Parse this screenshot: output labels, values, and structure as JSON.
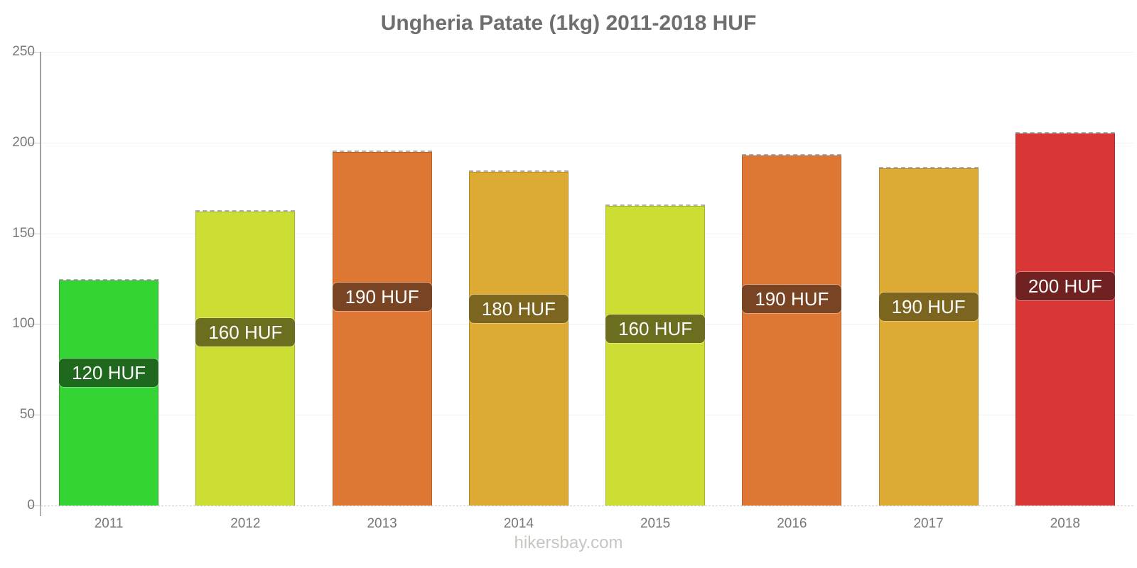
{
  "title": "Ungheria Patate (1kg) 2011-2018 HUF",
  "footer": "hikersbay.com",
  "chart_data": {
    "type": "bar",
    "title": "Ungheria Patate (1kg) 2011-2018 HUF",
    "xlabel": "",
    "ylabel": "",
    "categories": [
      "2011",
      "2012",
      "2013",
      "2014",
      "2015",
      "2016",
      "2017",
      "2018"
    ],
    "values": [
      124,
      162,
      195,
      184,
      165,
      193,
      186,
      205
    ],
    "value_labels": [
      "120 HUF",
      "160 HUF",
      "190 HUF",
      "180 HUF",
      "160 HUF",
      "190 HUF",
      "190 HUF",
      "200 HUF"
    ],
    "bar_colors": [
      "#33d433",
      "#ccdd33",
      "#dd7733",
      "#ddaa33",
      "#ccdd33",
      "#dd7733",
      "#ddaa33",
      "#d93636"
    ],
    "badge_colors": [
      "#1f691f",
      "#6b6d1f",
      "#784423",
      "#7b651f",
      "#6b6d1f",
      "#784423",
      "#7b651f",
      "#702222"
    ],
    "ylim": [
      0,
      250
    ],
    "yticks": [
      0,
      50,
      100,
      150,
      200,
      250
    ],
    "grid": true,
    "legend": "none"
  },
  "colors": {
    "title_text": "#6e6e6e",
    "axis_line": "#a0a0a0",
    "tick_mark": "#c4c4c4",
    "tick_label": "#787878",
    "gridline": "#f0f0f0",
    "badge_text": "#ffffff",
    "footer_text": "#c9c5c1",
    "background": "#ffffff"
  }
}
